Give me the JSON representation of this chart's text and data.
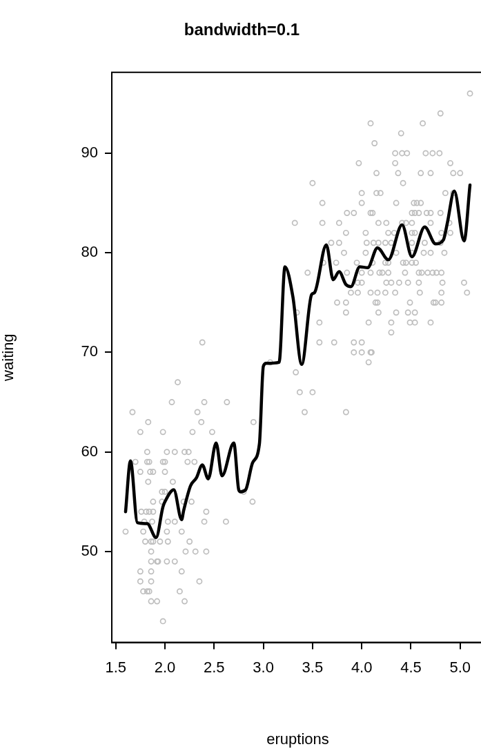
{
  "chart_data": {
    "type": "scatter",
    "title": "bandwidth=0.1",
    "xlabel": "eruptions",
    "ylabel": "waiting",
    "xlim": [
      1.46,
      5.24
    ],
    "ylim": [
      40.88,
      98.12
    ],
    "xticks": [
      {
        "value": 1.5,
        "label": "1.5"
      },
      {
        "value": 2,
        "label": "2.0"
      },
      {
        "value": 2.5,
        "label": "2.5"
      },
      {
        "value": 3,
        "label": "3.0"
      },
      {
        "value": 3.5,
        "label": "3.5"
      },
      {
        "value": 4,
        "label": "4.0"
      },
      {
        "value": 4.5,
        "label": "4.5"
      },
      {
        "value": 5,
        "label": "5.0"
      }
    ],
    "yticks": [
      50,
      60,
      70,
      80,
      90
    ],
    "grid": false,
    "legend": false,
    "series": [
      {
        "marker": "circle",
        "color": "#bebebe",
        "x": [
          5.1,
          4.8,
          4.09,
          4.62,
          4.4,
          4.13,
          4.34,
          4.41,
          4.46,
          4.65,
          4.72,
          4.79,
          3.97,
          4.34,
          4.9,
          4.15,
          4.37,
          4.6,
          4.7,
          4.93,
          5.0,
          3.5,
          4.42,
          4.0,
          4.15,
          4.19,
          4.85,
          4.93,
          3.6,
          4.0,
          4.35,
          4.53,
          4.56,
          4.6,
          3.85,
          3.92,
          4.09,
          4.11,
          4.51,
          4.54,
          4.58,
          4.66,
          4.7,
          4.8,
          3.32,
          3.6,
          3.77,
          4.17,
          4.25,
          4.41,
          4.45,
          4.51,
          4.7,
          4.89,
          3.84,
          4.04,
          4.27,
          4.33,
          4.51,
          4.54,
          4.81,
          4.9,
          3.69,
          3.77,
          4.05,
          4.12,
          4.17,
          4.24,
          4.3,
          4.51,
          4.64,
          4.8,
          3.82,
          4.04,
          4.35,
          4.51,
          4.63,
          4.7,
          4.84,
          3.61,
          3.74,
          3.95,
          4.11,
          4.24,
          4.27,
          4.42,
          4.45,
          4.51,
          4.55,
          3.45,
          3.85,
          4.0,
          4.09,
          4.18,
          4.21,
          4.27,
          4.44,
          4.58,
          4.61,
          4.67,
          4.72,
          4.76,
          4.81,
          3.96,
          4.0,
          4.25,
          4.3,
          4.38,
          4.47,
          4.58,
          4.82,
          5.04,
          3.89,
          3.96,
          4.09,
          4.16,
          4.24,
          4.34,
          4.59,
          4.81,
          5.07,
          3.75,
          3.84,
          4.14,
          4.16,
          4.49,
          4.73,
          4.75,
          4.81,
          3.34,
          3.84,
          4.17,
          4.35,
          4.47,
          4.54,
          3.57,
          4.07,
          4.3,
          4.49,
          4.54,
          4.7,
          4.3,
          2.38,
          3.57,
          3.72,
          3.92,
          4.0,
          3.92,
          4.0,
          4.09,
          4.1,
          3.07,
          4.07,
          3.33,
          2.13,
          3.37,
          3.5,
          2.07,
          2.4,
          2.63,
          1.67,
          2.33,
          3.42,
          3.84,
          1.83,
          2.37,
          2.9,
          1.75,
          1.98,
          2.28,
          2.48,
          1.82,
          2.02,
          2.1,
          2.2,
          2.24,
          1.7,
          1.82,
          1.84,
          1.98,
          2.0,
          2.23,
          2.3,
          1.75,
          1.85,
          1.88,
          2.0,
          1.83,
          2.08,
          1.97,
          2.0,
          2.8,
          1.88,
          1.97,
          2.19,
          2.27,
          2.89,
          1.76,
          1.81,
          1.84,
          1.88,
          2.42,
          1.79,
          1.87,
          2.03,
          2.1,
          2.4,
          2.62,
          1.6,
          1.78,
          2.02,
          2.17,
          1.8,
          1.86,
          1.88,
          1.95,
          2.03,
          2.25,
          1.86,
          2.21,
          2.31,
          2.42,
          1.86,
          1.92,
          1.93,
          2.02,
          2.1,
          1.75,
          1.86,
          2.17,
          1.75,
          1.86,
          2.35,
          1.78,
          1.82,
          1.84,
          2.15,
          1.86,
          1.92,
          2.2,
          1.98
        ],
        "values": [
          96,
          94,
          93,
          93,
          92,
          91,
          90,
          90,
          90,
          90,
          90,
          90,
          89,
          89,
          89,
          88,
          88,
          88,
          88,
          88,
          88,
          87,
          87,
          86,
          86,
          86,
          86,
          86,
          85,
          85,
          85,
          85,
          85,
          85,
          84,
          84,
          84,
          84,
          84,
          84,
          84,
          84,
          84,
          84,
          83,
          83,
          83,
          83,
          83,
          83,
          83,
          83,
          83,
          83,
          82,
          82,
          82,
          82,
          82,
          82,
          82,
          82,
          81,
          81,
          81,
          81,
          81,
          81,
          81,
          81,
          81,
          81,
          80,
          80,
          80,
          80,
          80,
          80,
          80,
          79,
          79,
          79,
          79,
          79,
          79,
          79,
          79,
          79,
          79,
          78,
          78,
          78,
          78,
          78,
          78,
          78,
          78,
          78,
          78,
          78,
          78,
          78,
          78,
          77,
          77,
          77,
          77,
          77,
          77,
          77,
          77,
          77,
          76,
          76,
          76,
          76,
          76,
          76,
          76,
          76,
          76,
          75,
          75,
          75,
          75,
          75,
          75,
          75,
          75,
          74,
          74,
          74,
          74,
          74,
          74,
          73,
          73,
          73,
          73,
          73,
          73,
          72,
          71,
          71,
          71,
          71,
          71,
          70,
          70,
          70,
          70,
          69,
          69,
          68,
          67,
          66,
          66,
          65,
          65,
          65,
          64,
          64,
          64,
          64,
          63,
          63,
          63,
          62,
          62,
          62,
          62,
          60,
          60,
          60,
          60,
          60,
          59,
          59,
          59,
          59,
          59,
          59,
          59,
          58,
          58,
          58,
          58,
          57,
          57,
          56,
          56,
          56,
          55,
          55,
          55,
          55,
          55,
          54,
          54,
          54,
          54,
          54,
          53,
          53,
          53,
          53,
          53,
          53,
          52,
          52,
          52,
          52,
          51,
          51,
          51,
          51,
          51,
          51,
          50,
          50,
          50,
          50,
          49,
          49,
          49,
          49,
          49,
          48,
          48,
          48,
          47,
          47,
          47,
          46,
          46,
          46,
          46,
          45,
          45,
          45,
          43
        ]
      },
      {
        "type": "line",
        "marker": "none",
        "line_style": "solid",
        "color": "#000000",
        "x": [
          1.6,
          1.65,
          1.72,
          1.82,
          1.91,
          1.98,
          2.0,
          2.09,
          2.17,
          2.19,
          2.26,
          2.32,
          2.38,
          2.44,
          2.52,
          2.58,
          2.7,
          2.75,
          2.77,
          2.82,
          2.89,
          2.96,
          3.0,
          3.03,
          3.16,
          3.22,
          3.3,
          3.39,
          3.49,
          3.52,
          3.64,
          3.71,
          3.77,
          3.84,
          3.89,
          3.98,
          4.06,
          4.16,
          4.27,
          4.41,
          4.51,
          4.64,
          4.75,
          4.83,
          4.87,
          4.94,
          5.04,
          5.1
        ],
        "values": [
          54.0,
          59.1,
          52.9,
          52.8,
          51.4,
          54.5,
          55.0,
          56.2,
          53.2,
          54.1,
          56.6,
          57.4,
          58.7,
          57.3,
          60.9,
          57.6,
          60.9,
          56.2,
          56.0,
          56.2,
          58.9,
          60.8,
          68.6,
          68.9,
          69.0,
          78.6,
          75.6,
          68.8,
          75.8,
          76.0,
          80.8,
          77.3,
          78.1,
          76.8,
          76.6,
          78.6,
          78.5,
          80.5,
          79.3,
          82.8,
          79.6,
          82.6,
          80.9,
          81.3,
          83.0,
          86.2,
          81.2,
          86.8
        ]
      }
    ]
  }
}
